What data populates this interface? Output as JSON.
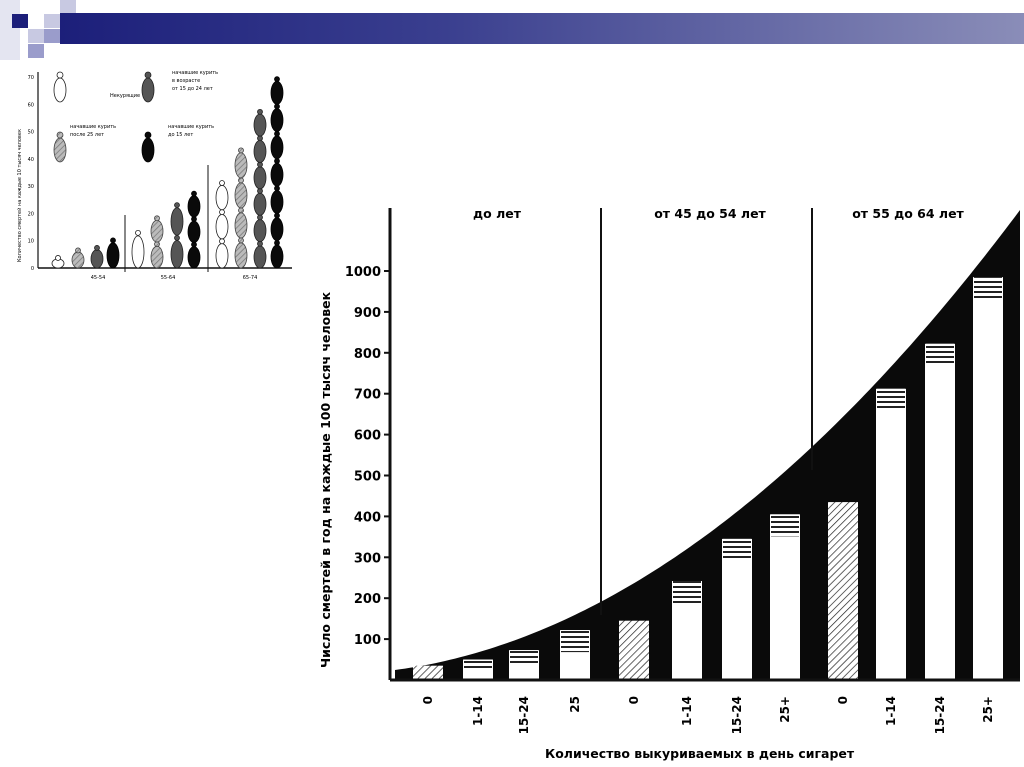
{
  "colors": {
    "banner": "#1c1f7a",
    "ink": "#111111"
  },
  "small_chart": {
    "type": "bar",
    "ylabel": "Количество смертей на каждые 10 тысяч человек",
    "yticks": [
      "0",
      "10",
      "20",
      "30",
      "40",
      "50",
      "60",
      "70"
    ],
    "ylim": [
      0,
      70
    ],
    "categories": [
      "45-54",
      "55-64",
      "65-74"
    ],
    "legend": [
      {
        "label": "Некурящие",
        "style": "outline"
      },
      {
        "label": "начавшие курить после 25 лет",
        "style": "light-hatched"
      },
      {
        "label": "начавшие курить в возрасте от 15 до 24 лет",
        "style": "dark-gray"
      },
      {
        "label": "начавшие курить до 15 лет",
        "style": "black"
      }
    ],
    "series": [
      {
        "name": "Некурящие",
        "values": [
          4,
          14,
          32
        ]
      },
      {
        "name": "начавшие курить после 25 лет",
        "values": [
          7,
          19,
          44
        ]
      },
      {
        "name": "начавшие курить от 15 до 24 лет",
        "values": [
          8,
          24,
          58
        ]
      },
      {
        "name": "начавшие курить до 15 лет",
        "values": [
          11,
          28,
          70
        ]
      }
    ]
  },
  "chart_data": {
    "type": "bar",
    "title": "",
    "ylabel": "Число смертей в год на каждые 100 тысяч человек",
    "xlabel": "Количество выкуриваемых в день сигарет",
    "ylim": [
      0,
      1100
    ],
    "yticks": [
      "100",
      "200",
      "300",
      "400",
      "500",
      "600",
      "700",
      "800",
      "900",
      "1000"
    ],
    "groups": [
      "до лет",
      "от 45 до 54 лет",
      "от 55 до 64 лет"
    ],
    "categories": [
      "0",
      "1-14",
      "15-24",
      "25",
      "0",
      "1-14",
      "15-24",
      "25+",
      "0",
      "1-14",
      "15-24",
      "25+"
    ],
    "values": [
      35,
      50,
      73,
      122,
      145,
      242,
      345,
      405,
      435,
      712,
      822,
      985
    ]
  }
}
